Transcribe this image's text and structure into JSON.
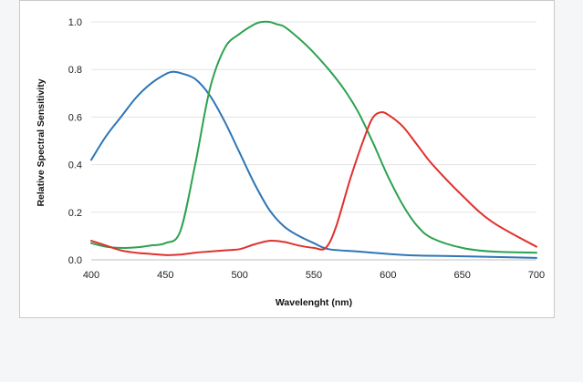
{
  "chart_data": {
    "type": "line",
    "title": "",
    "xlabel": "Wavelenght (nm)",
    "ylabel": "Relative Spectral Sensitivity",
    "xlim": [
      400,
      700
    ],
    "ylim": [
      0,
      1.0
    ],
    "xticks": [
      "400",
      "450",
      "500",
      "550",
      "600",
      "650",
      "700"
    ],
    "yticks": [
      "0.0",
      "0.2",
      "0.4",
      "0.6",
      "0.8",
      "1.0"
    ],
    "grid": true,
    "legend": "none",
    "series": [
      {
        "color": "#2e75b6",
        "x": [
          400,
          410,
          420,
          430,
          440,
          450,
          455,
          460,
          470,
          480,
          490,
          500,
          510,
          520,
          530,
          540,
          550,
          560,
          580,
          600,
          620,
          650,
          700
        ],
        "y": [
          0.42,
          0.52,
          0.6,
          0.68,
          0.74,
          0.78,
          0.79,
          0.785,
          0.76,
          0.69,
          0.58,
          0.45,
          0.32,
          0.21,
          0.14,
          0.1,
          0.07,
          0.045,
          0.035,
          0.025,
          0.018,
          0.015,
          0.008
        ]
      },
      {
        "color": "#2ca24f",
        "x": [
          400,
          410,
          420,
          430,
          440,
          450,
          460,
          470,
          480,
          490,
          500,
          510,
          515,
          520,
          525,
          530,
          540,
          550,
          560,
          570,
          580,
          590,
          600,
          610,
          620,
          630,
          650,
          670,
          700
        ],
        "y": [
          0.07,
          0.055,
          0.05,
          0.052,
          0.06,
          0.07,
          0.12,
          0.4,
          0.72,
          0.89,
          0.95,
          0.99,
          1.0,
          1.0,
          0.99,
          0.98,
          0.93,
          0.87,
          0.8,
          0.72,
          0.62,
          0.49,
          0.35,
          0.23,
          0.14,
          0.09,
          0.05,
          0.035,
          0.03
        ]
      },
      {
        "color": "#e0312d",
        "x": [
          400,
          410,
          420,
          430,
          440,
          450,
          460,
          470,
          480,
          490,
          500,
          510,
          520,
          530,
          540,
          550,
          558,
          565,
          575,
          585,
          590,
          595,
          600,
          610,
          620,
          630,
          650,
          670,
          700
        ],
        "y": [
          0.08,
          0.06,
          0.04,
          0.03,
          0.025,
          0.02,
          0.022,
          0.03,
          0.035,
          0.04,
          0.045,
          0.065,
          0.08,
          0.075,
          0.06,
          0.05,
          0.05,
          0.14,
          0.35,
          0.53,
          0.6,
          0.62,
          0.61,
          0.56,
          0.48,
          0.4,
          0.27,
          0.16,
          0.055
        ]
      }
    ]
  }
}
